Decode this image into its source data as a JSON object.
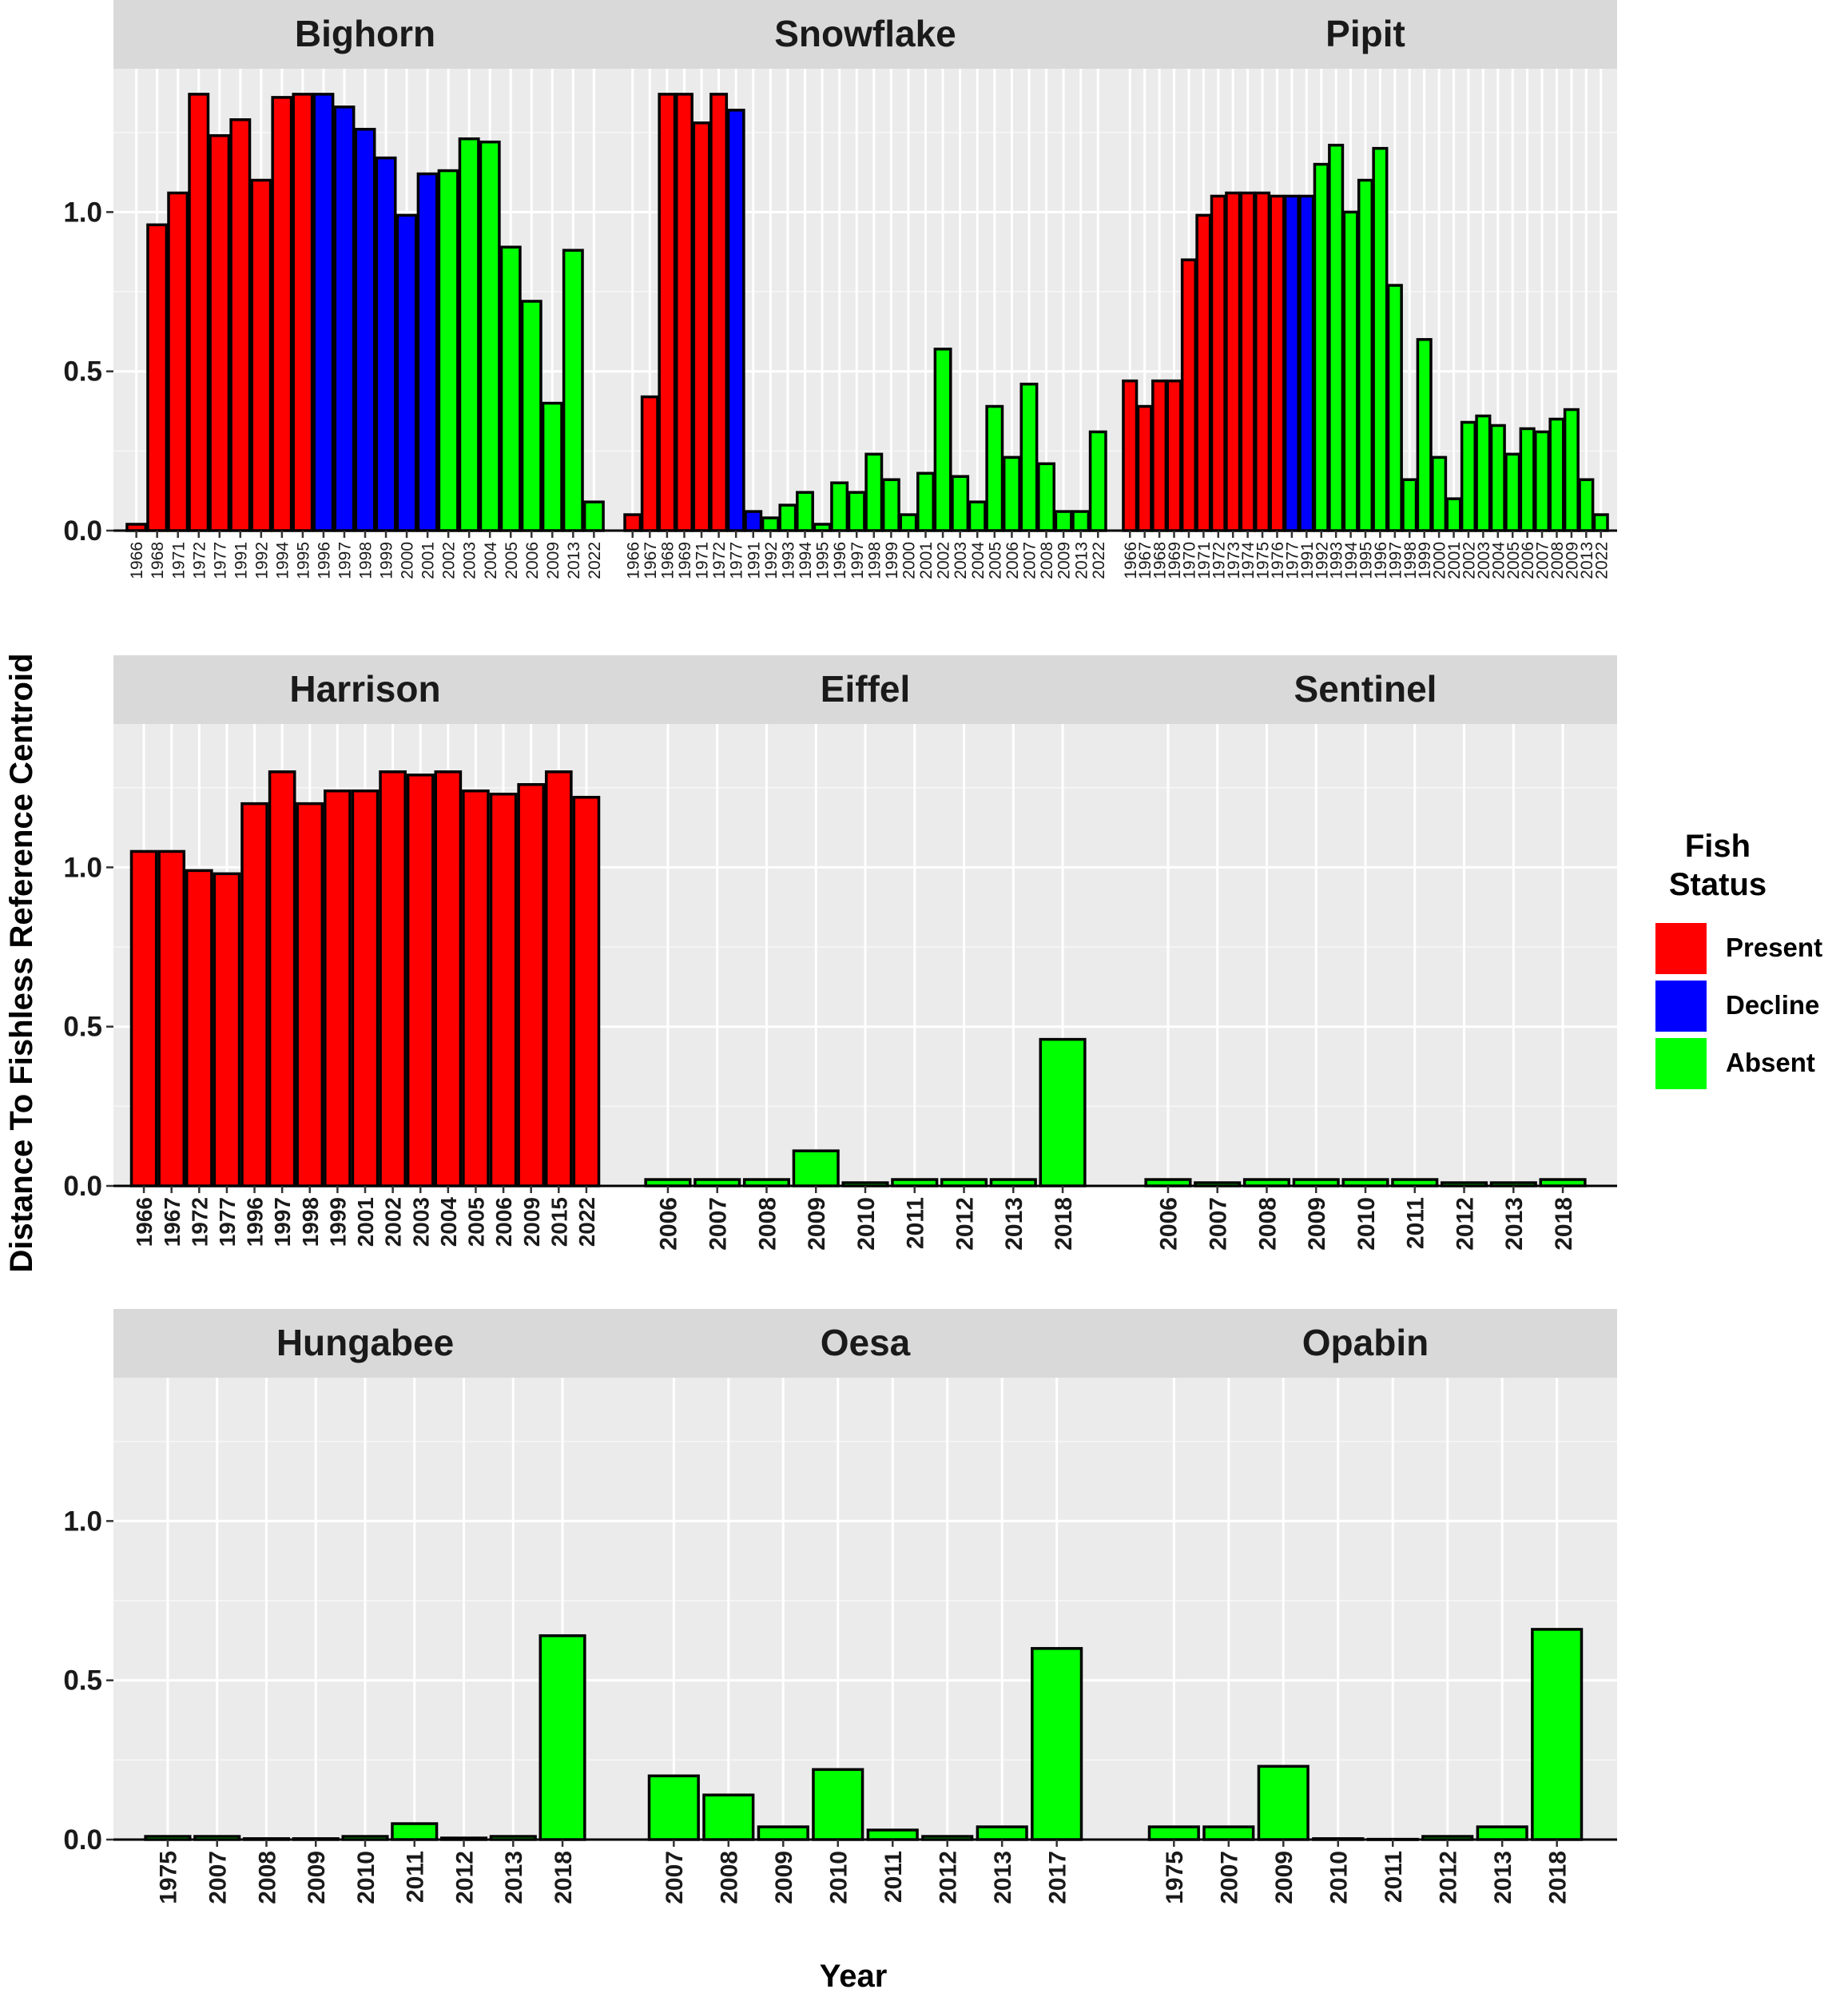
{
  "chart_data": {
    "type": "bar",
    "ylabel": "Distance To Fishless Reference Centroid",
    "xlabel": "Year",
    "ylim": [
      0,
      1.45
    ],
    "yticks": [
      "0.0",
      "0.5",
      "1.0"
    ],
    "grid": true,
    "legend": {
      "title": [
        "Fish",
        "Status"
      ],
      "placement": "right",
      "entries": [
        {
          "label": "Present",
          "color": "#ff0000"
        },
        {
          "label": "Decline",
          "color": "#0000ff"
        },
        {
          "label": "Absent",
          "color": "#00ff00"
        }
      ]
    },
    "panels": [
      {
        "title": "Bighorn",
        "x": [
          "1966",
          "1968",
          "1971",
          "1972",
          "1977",
          "1991",
          "1992",
          "1994",
          "1995",
          "1996",
          "1997",
          "1998",
          "1999",
          "2000",
          "2001",
          "2002",
          "2003",
          "2004",
          "2005",
          "2006",
          "2009",
          "2013",
          "2022"
        ],
        "values": [
          0.02,
          0.96,
          1.06,
          1.37,
          1.24,
          1.29,
          1.1,
          1.36,
          1.37,
          1.37,
          1.33,
          1.26,
          1.17,
          0.99,
          1.12,
          1.13,
          1.23,
          1.22,
          0.89,
          0.72,
          0.4,
          0.88,
          0.09
        ],
        "status": [
          "Present",
          "Present",
          "Present",
          "Present",
          "Present",
          "Present",
          "Present",
          "Present",
          "Present",
          "Decline",
          "Decline",
          "Decline",
          "Decline",
          "Decline",
          "Decline",
          "Absent",
          "Absent",
          "Absent",
          "Absent",
          "Absent",
          "Absent",
          "Absent",
          "Absent"
        ]
      },
      {
        "title": "Snowflake",
        "x": [
          "1966",
          "1967",
          "1968",
          "1969",
          "1971",
          "1972",
          "1977",
          "1991",
          "1992",
          "1993",
          "1994",
          "1995",
          "1996",
          "1997",
          "1998",
          "1999",
          "2000",
          "2001",
          "2002",
          "2003",
          "2004",
          "2005",
          "2006",
          "2007",
          "2008",
          "2009",
          "2013",
          "2022"
        ],
        "values": [
          0.05,
          0.42,
          1.37,
          1.37,
          1.28,
          1.37,
          1.32,
          0.06,
          0.04,
          0.08,
          0.12,
          0.02,
          0.15,
          0.12,
          0.24,
          0.16,
          0.05,
          0.18,
          0.57,
          0.17,
          0.09,
          0.39,
          0.23,
          0.46,
          0.21,
          0.06,
          0.06,
          0.31
        ],
        "status": [
          "Present",
          "Present",
          "Present",
          "Present",
          "Present",
          "Present",
          "Decline",
          "Decline",
          "Absent",
          "Absent",
          "Absent",
          "Absent",
          "Absent",
          "Absent",
          "Absent",
          "Absent",
          "Absent",
          "Absent",
          "Absent",
          "Absent",
          "Absent",
          "Absent",
          "Absent",
          "Absent",
          "Absent",
          "Absent",
          "Absent",
          "Absent"
        ]
      },
      {
        "title": "Pipit",
        "x": [
          "1966",
          "1967",
          "1968",
          "1969",
          "1970",
          "1971",
          "1972",
          "1973",
          "1974",
          "1975",
          "1976",
          "1977",
          "1991",
          "1992",
          "1993",
          "1994",
          "1995",
          "1996",
          "1997",
          "1998",
          "1999",
          "2000",
          "2001",
          "2002",
          "2003",
          "2004",
          "2005",
          "2006",
          "2007",
          "2008",
          "2009",
          "2013",
          "2022"
        ],
        "values": [
          0.47,
          0.39,
          0.47,
          0.47,
          0.85,
          0.99,
          1.05,
          1.06,
          1.06,
          1.06,
          1.05,
          1.05,
          1.05,
          1.15,
          1.21,
          1.0,
          1.1,
          1.2,
          0.77,
          0.16,
          0.6,
          0.23,
          0.1,
          0.34,
          0.36,
          0.33,
          0.24,
          0.32,
          0.31,
          0.35,
          0.38,
          0.16,
          0.05
        ],
        "status": [
          "Present",
          "Present",
          "Present",
          "Present",
          "Present",
          "Present",
          "Present",
          "Present",
          "Present",
          "Present",
          "Present",
          "Decline",
          "Decline",
          "Absent",
          "Absent",
          "Absent",
          "Absent",
          "Absent",
          "Absent",
          "Absent",
          "Absent",
          "Absent",
          "Absent",
          "Absent",
          "Absent",
          "Absent",
          "Absent",
          "Absent",
          "Absent",
          "Absent",
          "Absent",
          "Absent",
          "Absent"
        ]
      },
      {
        "title": "Harrison",
        "x": [
          "1966",
          "1967",
          "1972",
          "1977",
          "1996",
          "1997",
          "1998",
          "1999",
          "2001",
          "2002",
          "2003",
          "2004",
          "2005",
          "2006",
          "2009",
          "2015",
          "2022"
        ],
        "values": [
          1.05,
          1.05,
          0.99,
          0.98,
          1.2,
          1.3,
          1.2,
          1.24,
          1.24,
          1.3,
          1.29,
          1.3,
          1.24,
          1.23,
          1.26,
          1.3,
          1.22
        ],
        "status": [
          "Present",
          "Present",
          "Present",
          "Present",
          "Present",
          "Present",
          "Present",
          "Present",
          "Present",
          "Present",
          "Present",
          "Present",
          "Present",
          "Present",
          "Present",
          "Present",
          "Present"
        ]
      },
      {
        "title": "Eiffel",
        "x": [
          "2006",
          "2007",
          "2008",
          "2009",
          "2010",
          "2011",
          "2012",
          "2013",
          "2018"
        ],
        "values": [
          0.02,
          0.02,
          0.02,
          0.11,
          0.01,
          0.02,
          0.02,
          0.02,
          0.46
        ],
        "status": [
          "Absent",
          "Absent",
          "Absent",
          "Absent",
          "Absent",
          "Absent",
          "Absent",
          "Absent",
          "Absent"
        ]
      },
      {
        "title": "Sentinel",
        "x": [
          "2006",
          "2007",
          "2008",
          "2009",
          "2010",
          "2011",
          "2012",
          "2013",
          "2018"
        ],
        "values": [
          0.02,
          0.01,
          0.02,
          0.02,
          0.02,
          0.02,
          0.01,
          0.01,
          0.02
        ],
        "status": [
          "Absent",
          "Absent",
          "Absent",
          "Absent",
          "Absent",
          "Absent",
          "Absent",
          "Absent",
          "Absent"
        ]
      },
      {
        "title": "Hungabee",
        "x": [
          "1975",
          "2007",
          "2008",
          "2009",
          "2010",
          "2011",
          "2012",
          "2013",
          "2018"
        ],
        "values": [
          0.01,
          0.01,
          0.003,
          0.003,
          0.01,
          0.05,
          0.005,
          0.01,
          0.64
        ],
        "status": [
          "Absent",
          "Absent",
          "Absent",
          "Absent",
          "Absent",
          "Absent",
          "Absent",
          "Absent",
          "Absent"
        ]
      },
      {
        "title": "Oesa",
        "x": [
          "2007",
          "2008",
          "2009",
          "2010",
          "2011",
          "2012",
          "2013",
          "2017"
        ],
        "values": [
          0.2,
          0.14,
          0.04,
          0.22,
          0.03,
          0.01,
          0.04,
          0.6
        ],
        "status": [
          "Absent",
          "Absent",
          "Absent",
          "Absent",
          "Absent",
          "Absent",
          "Absent",
          "Absent"
        ]
      },
      {
        "title": "Opabin",
        "x": [
          "1975",
          "2007",
          "2009",
          "2010",
          "2011",
          "2012",
          "2013",
          "2018"
        ],
        "values": [
          0.04,
          0.04,
          0.23,
          0.003,
          0.001,
          0.01,
          0.04,
          0.66
        ],
        "status": [
          "Absent",
          "Absent",
          "Absent",
          "Absent",
          "Absent",
          "Absent",
          "Absent",
          "Absent"
        ]
      }
    ]
  }
}
